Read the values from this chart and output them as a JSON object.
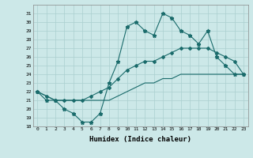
{
  "xlabel": "Humidex (Indice chaleur)",
  "xlim": [
    -0.5,
    23.5
  ],
  "ylim": [
    18,
    32
  ],
  "yticks": [
    18,
    19,
    20,
    21,
    22,
    23,
    24,
    25,
    26,
    27,
    28,
    29,
    30,
    31
  ],
  "xticks": [
    0,
    1,
    2,
    3,
    4,
    5,
    6,
    7,
    8,
    9,
    10,
    11,
    12,
    13,
    14,
    15,
    16,
    17,
    18,
    19,
    20,
    21,
    22,
    23
  ],
  "bg_color": "#cce8e8",
  "line_color": "#1a6b6b",
  "grid_color": "#aacfcf",
  "line1_y": [
    22,
    21,
    21,
    20,
    19.5,
    18.5,
    18.5,
    19.5,
    23,
    25.5,
    29.5,
    30,
    29,
    28.5,
    31,
    30.5,
    29,
    28.5,
    27.5,
    29,
    26,
    25,
    24,
    24
  ],
  "line2_y": [
    22,
    21.5,
    21,
    21,
    21,
    21,
    21.5,
    22,
    22.5,
    23.5,
    24.5,
    25,
    25.5,
    25.5,
    26,
    26.5,
    27,
    27,
    27,
    27,
    26.5,
    26,
    25.5,
    24
  ],
  "line3_y": [
    22,
    21.5,
    21,
    21,
    21,
    21,
    21,
    21,
    21,
    21.5,
    22,
    22.5,
    23,
    23,
    23.5,
    23.5,
    24,
    24,
    24,
    24,
    24,
    24,
    24,
    24
  ]
}
